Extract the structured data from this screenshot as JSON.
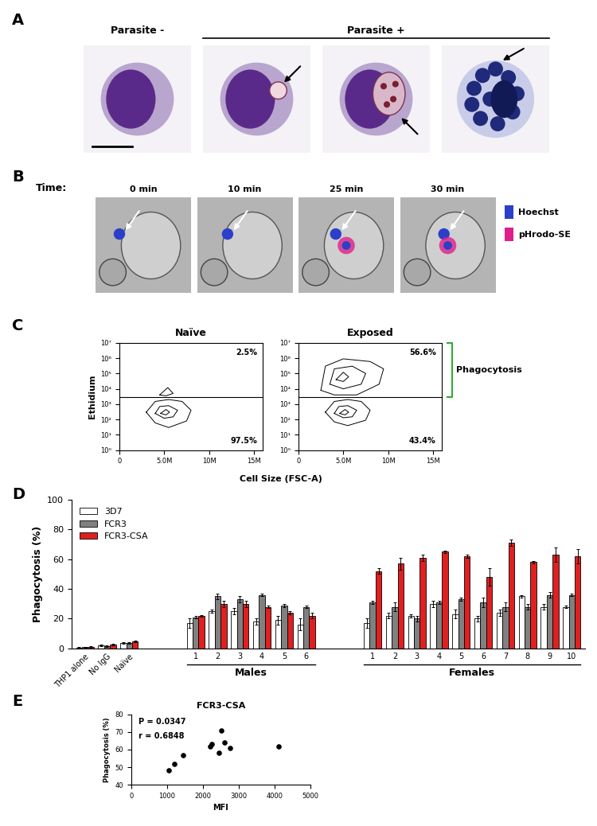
{
  "panel_a": {
    "letter": "A",
    "headers": [
      "Parasite -",
      "Parasite +"
    ]
  },
  "panel_b": {
    "letter": "B",
    "time_label": "Time:",
    "times": [
      "0 min",
      "10 min",
      "25 min",
      "30 min"
    ],
    "stains": [
      {
        "name": "Hoechst",
        "color": "#2b3fc8"
      },
      {
        "name": "pHrodo-SE",
        "color": "#e0208a"
      }
    ]
  },
  "chart_data": [
    {
      "type": "contour",
      "panel": "C",
      "title": "Naïve",
      "x_label": "Cell Size (FSC-A)",
      "y_label": "Ethidium",
      "log": "y",
      "xlim": [
        0,
        16000000
      ],
      "ylim": [
        1,
        10000000
      ],
      "xticks": [
        0,
        {
          "value": 5000000,
          "label": "5.0M"
        },
        {
          "value": 10000000,
          "label": "10M"
        },
        {
          "value": 15000000,
          "label": "15M"
        }
      ],
      "yticks": [
        {
          "value": 1,
          "label": "10⁰"
        },
        {
          "value": 10,
          "label": "10¹"
        },
        {
          "value": 100,
          "label": "10²"
        },
        {
          "value": 1000,
          "label": "10³"
        },
        {
          "value": 10000,
          "label": "10⁴"
        },
        {
          "value": 100000,
          "label": "10⁵"
        },
        {
          "value": 1000000,
          "label": "10⁶"
        },
        {
          "value": 10000000,
          "label": "10⁷"
        }
      ],
      "gate": 3000,
      "gate_percent": {
        "values": [
          2.5,
          97.5
        ],
        "value_labels": [
          "2.5%",
          "97.5%"
        ]
      },
      "color": "#000000",
      "populations": [
        {
          "rings": [
            {
              "x": [
                3000000,
                4000000,
                5500000,
                7500000,
                8000000,
                7000000,
                5500000,
                4000000,
                3000000
              ],
              "y": [
                300,
                60,
                30,
                80,
                400,
                1500,
                2000,
                1500,
                300
              ]
            },
            {
              "x": [
                4000000,
                5000000,
                6000000,
                6500000,
                5500000,
                4500000,
                4000000
              ],
              "y": [
                250,
                120,
                150,
                400,
                800,
                700,
                250
              ]
            },
            {
              "x": [
                4600000,
                5200000,
                5600000,
                5200000,
                4600000
              ],
              "y": [
                250,
                200,
                300,
                450,
                250
              ]
            }
          ]
        },
        {
          "rings": [
            {
              "x": [
                4500000,
                5200000,
                6000000,
                5400000,
                4500000
              ],
              "y": [
                4000,
                3500,
                5000,
                12000,
                4000
              ]
            }
          ]
        }
      ]
    },
    {
      "type": "contour",
      "panel": null,
      "title": "Exposed",
      "log": "y",
      "xlim": [
        0,
        16000000
      ],
      "ylim": [
        1,
        10000000
      ],
      "xticks": [
        0,
        {
          "value": 5000000,
          "label": "5.0M"
        },
        {
          "value": 10000000,
          "label": "10M"
        },
        {
          "value": 15000000,
          "label": "15M"
        }
      ],
      "yticks": [
        {
          "value": 1,
          "label": "10⁰"
        },
        {
          "value": 10,
          "label": "10¹"
        },
        {
          "value": 100,
          "label": "10²"
        },
        {
          "value": 1000,
          "label": "10³"
        },
        {
          "value": 10000,
          "label": "10⁴"
        },
        {
          "value": 100000,
          "label": "10⁵"
        },
        {
          "value": 1000000,
          "label": "10⁶"
        },
        {
          "value": 10000000,
          "label": "10⁷"
        }
      ],
      "gate": 3000,
      "gate_percent": {
        "values": [
          56.6,
          43.4
        ],
        "value_labels": [
          "56.6%",
          "43.4%"
        ]
      },
      "bracket": "Phagocytosis",
      "bracket_color": "#33aa33",
      "color": "#000000",
      "populations": [
        {
          "rings": [
            {
              "x": [
                3000000,
                4000000,
                5500000,
                7500000,
                8000000,
                7000000,
                5500000,
                4000000,
                3000000
              ],
              "y": [
                300,
                70,
                40,
                90,
                400,
                1500,
                2000,
                1500,
                300
              ]
            },
            {
              "x": [
                4000000,
                5000000,
                6000000,
                6500000,
                5500000,
                4500000,
                4000000
              ],
              "y": [
                250,
                130,
                150,
                400,
                800,
                700,
                250
              ]
            },
            {
              "x": [
                4600000,
                5200000,
                5600000,
                5200000,
                4600000
              ],
              "y": [
                250,
                200,
                300,
                450,
                250
              ]
            }
          ]
        },
        {
          "rings": [
            {
              "x": [
                2500000,
                4000000,
                6500000,
                9000000,
                9500000,
                8000000,
                5000000,
                3000000,
                2500000
              ],
              "y": [
                8000,
                4000,
                4000,
                20000,
                200000,
                600000,
                900000,
                300000,
                8000
              ]
            },
            {
              "x": [
                3500000,
                5000000,
                7000000,
                7500000,
                6000000,
                4000000,
                3500000
              ],
              "y": [
                20000,
                10000,
                20000,
                100000,
                300000,
                200000,
                20000
              ]
            },
            {
              "x": [
                4200000,
                5000000,
                5600000,
                5000000,
                4200000
              ],
              "y": [
                40000,
                30000,
                60000,
                120000,
                40000
              ]
            }
          ]
        }
      ]
    },
    {
      "type": "bar",
      "panel": "D",
      "y_label": "Phagocytosis (%)",
      "categories": [
        "THP1 alone",
        "No IgG",
        "Naïve",
        null,
        null,
        "1",
        "2",
        "3",
        "4",
        "5",
        "6",
        null,
        null,
        "1",
        "2",
        "3",
        "4",
        "5",
        "6",
        "7",
        "8",
        "9",
        "10"
      ],
      "groups": [
        null,
        "Males",
        "Females"
      ],
      "ylim": [
        0,
        100
      ],
      "yticks": [
        0,
        20,
        40,
        60,
        80,
        100
      ],
      "legend": "upper left",
      "series": [
        {
          "name": "3D7",
          "color": "#ffffff",
          "values": [
            0.5,
            2,
            3.5,
            null,
            null,
            17,
            25,
            25,
            18,
            19,
            16,
            null,
            null,
            17,
            22,
            22,
            30,
            23,
            20,
            24,
            35,
            28,
            28
          ],
          "errors": [
            0.3,
            0.5,
            0.5,
            null,
            null,
            3,
            1,
            2,
            2,
            3,
            4,
            null,
            null,
            3,
            2,
            1,
            2,
            3,
            2,
            2,
            1,
            2,
            1
          ]
        },
        {
          "name": "FCR3",
          "color": "#808080",
          "values": [
            0.8,
            1.5,
            3.5,
            null,
            null,
            21,
            35,
            33,
            36,
            29,
            28,
            null,
            null,
            31,
            28,
            20,
            31,
            33,
            31,
            28,
            28,
            36,
            36
          ],
          "errors": [
            0.3,
            0.5,
            0.5,
            null,
            null,
            1,
            2,
            2,
            1,
            1,
            1,
            null,
            null,
            1,
            3,
            2,
            1,
            1,
            3,
            3,
            2,
            2,
            1
          ]
        },
        {
          "name": "FCR3-CSA",
          "color": "#e02020",
          "values": [
            1.0,
            2.5,
            4.5,
            null,
            null,
            22,
            30,
            30,
            28,
            24,
            22,
            null,
            null,
            52,
            57,
            61,
            65,
            62,
            48,
            71,
            58,
            63,
            62
          ],
          "errors": [
            0.3,
            0.5,
            0.5,
            null,
            null,
            0.5,
            2,
            2,
            1,
            1,
            2,
            null,
            null,
            2,
            4,
            2,
            1,
            1,
            6,
            2,
            1,
            5,
            5
          ]
        }
      ]
    },
    {
      "type": "scatter",
      "panel": "E",
      "title": "FCR3-CSA",
      "x_label": "MFI",
      "y_label": "Phagocytosis (%)",
      "x": [
        1050,
        1200,
        1450,
        2200,
        2250,
        2450,
        2500,
        2600,
        2750,
        4100
      ],
      "values": [
        48,
        52,
        57,
        62,
        63,
        58,
        71,
        64,
        61,
        62
      ],
      "color": "#000000",
      "xlim": [
        0,
        5000
      ],
      "xticks": [
        0,
        1000,
        2000,
        3000,
        4000,
        5000
      ],
      "ylim": [
        40,
        80
      ],
      "yticks": [
        40,
        50,
        60,
        70,
        80
      ],
      "annotations": [
        "P = 0.0347",
        "r = 0.6848"
      ]
    }
  ]
}
